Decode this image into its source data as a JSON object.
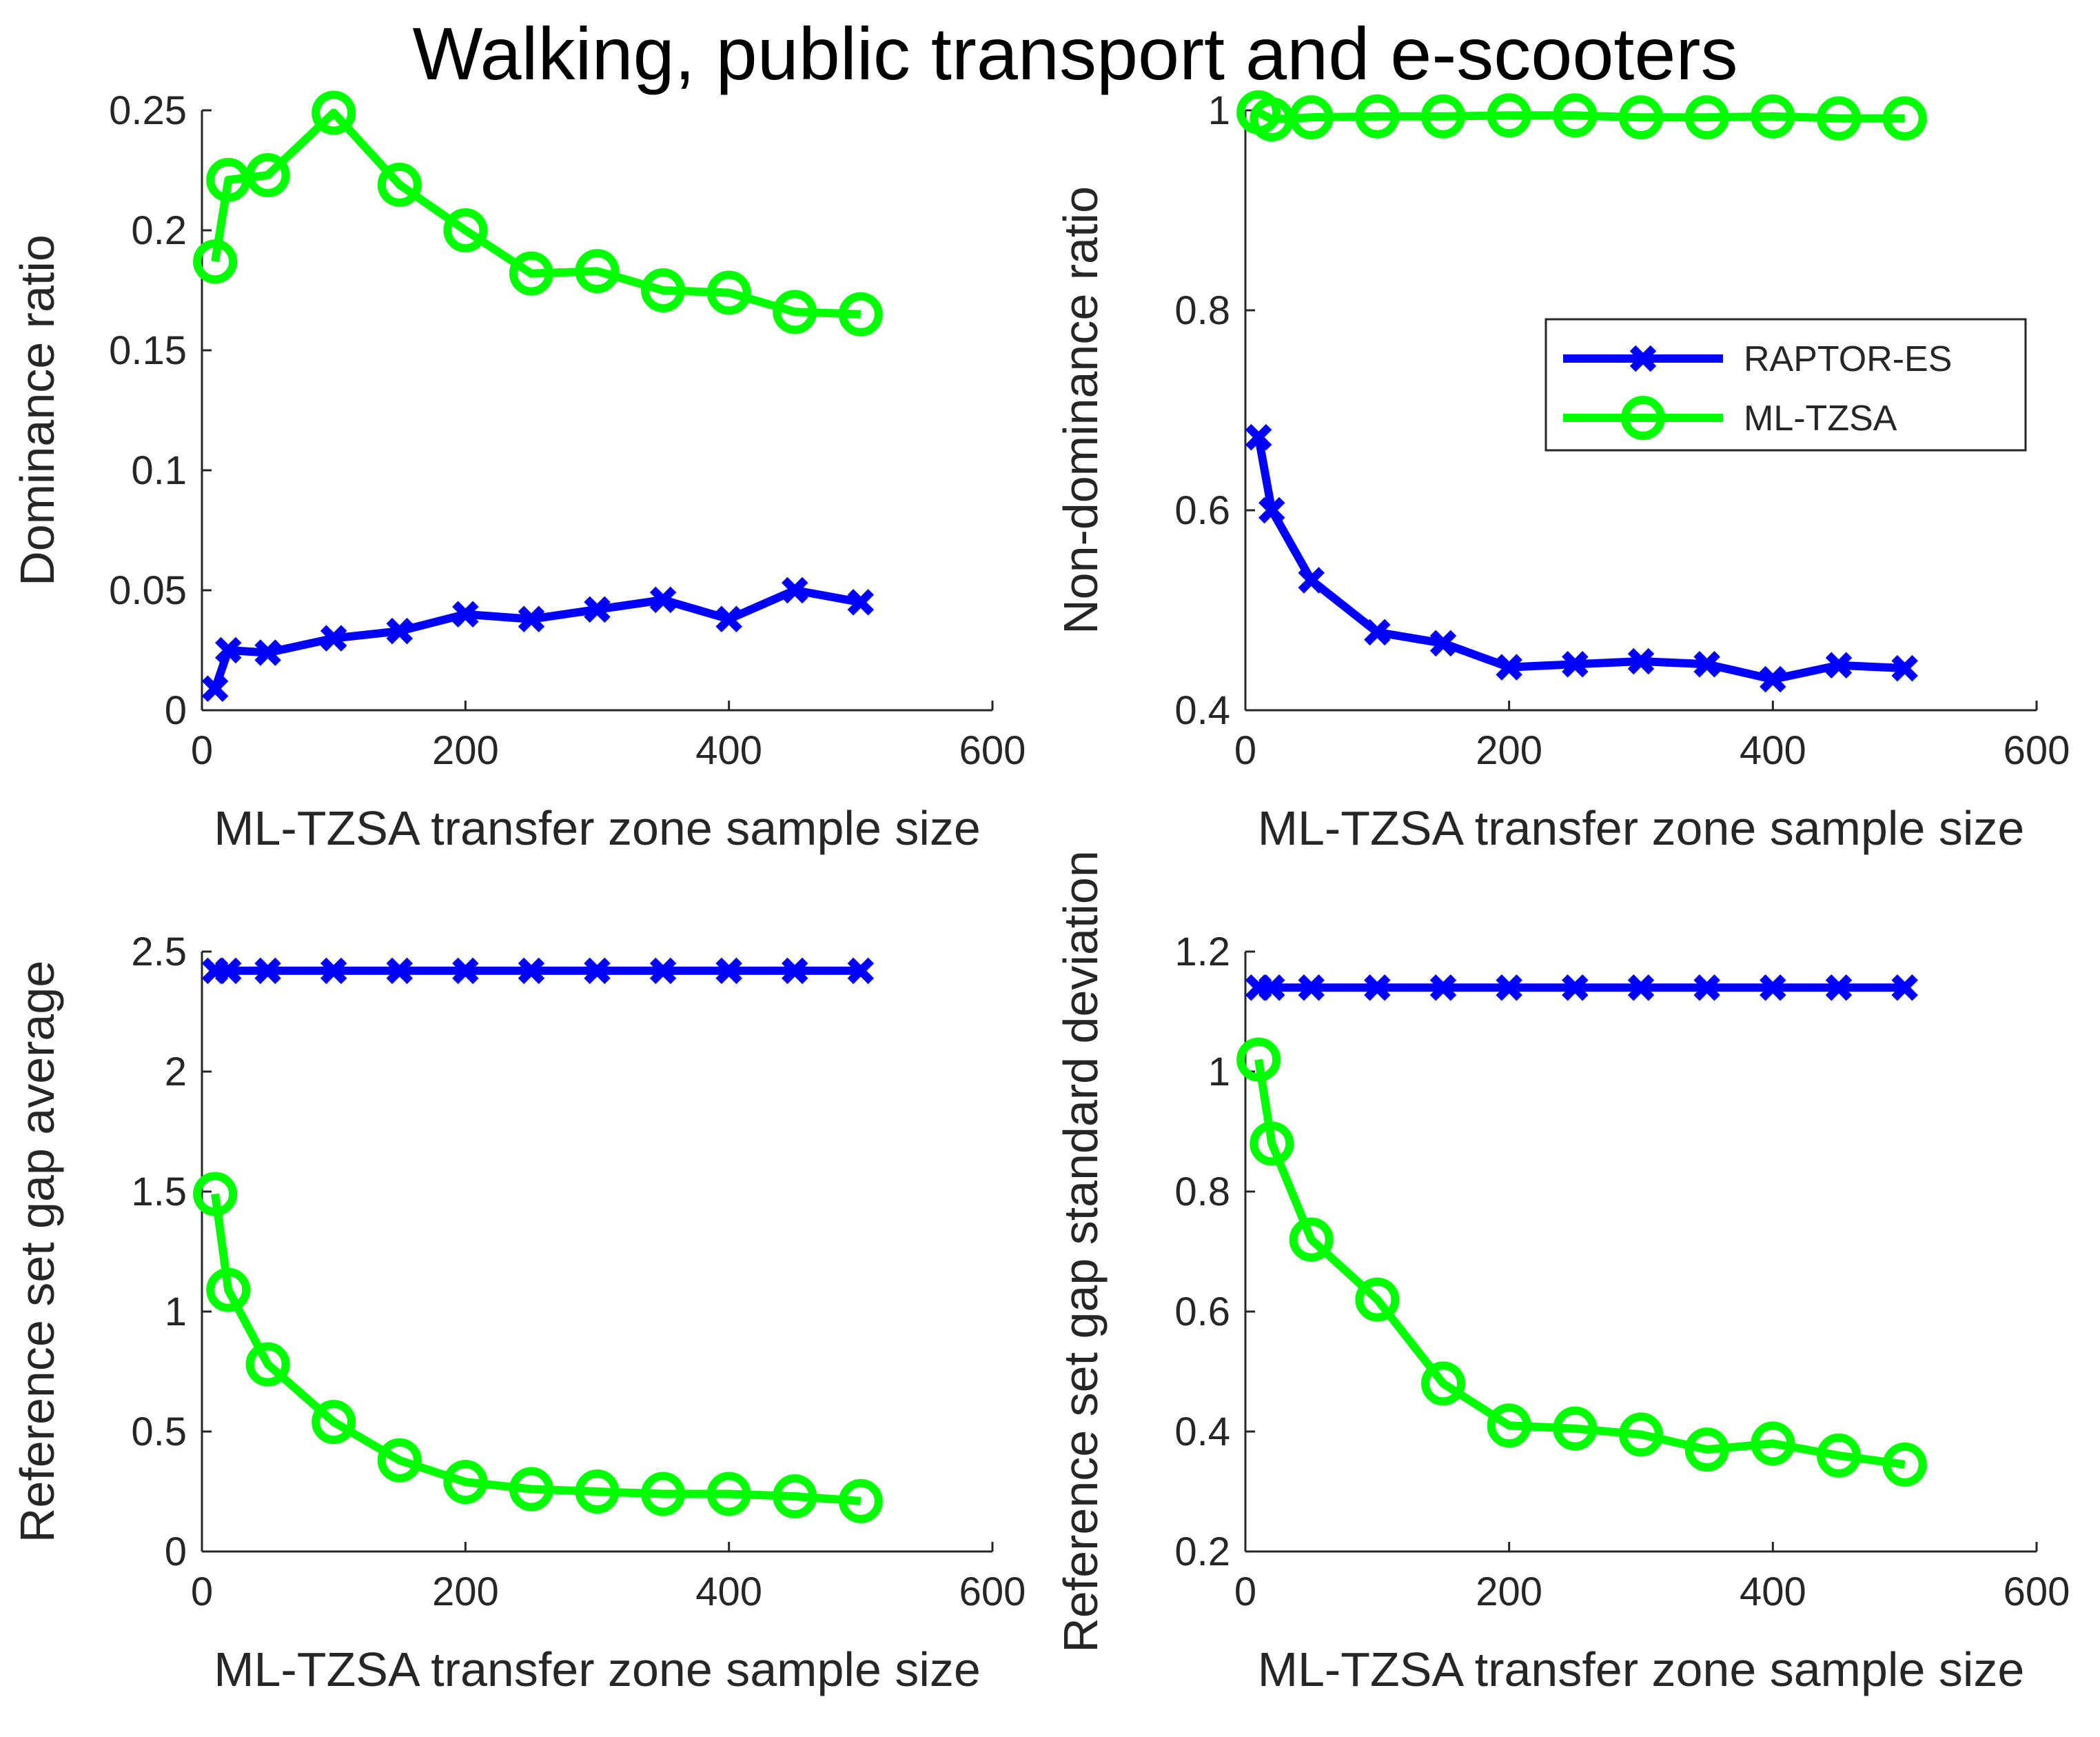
{
  "figure_title": "Walking, public transport and e-scooters",
  "colors": {
    "raptor": "#0000ff",
    "mltzsa": "#00ff00",
    "axis": "#262626"
  },
  "legend": {
    "placement": "top-right of top-right panel",
    "entries": [
      "RAPTOR-ES",
      "ML-TZSA"
    ]
  },
  "chart_data": [
    {
      "type": "line",
      "xlabel": "ML-TZSA transfer zone sample size",
      "ylabel": "Dominance ratio",
      "xlim": [
        0,
        600
      ],
      "ylim": [
        0,
        0.25
      ],
      "xticks": [
        0,
        200,
        400,
        600
      ],
      "xtick_labels": [
        "0",
        "200",
        "400",
        "600"
      ],
      "yticks": [
        0,
        0.05,
        0.1,
        0.15,
        0.2,
        0.25
      ],
      "ytick_labels": [
        "0",
        "0.05",
        "0.1",
        "0.15",
        "0.2",
        "0.25"
      ],
      "x": [
        10,
        20,
        50,
        100,
        150,
        200,
        250,
        300,
        350,
        400,
        450,
        500
      ],
      "series": [
        {
          "name": "RAPTOR-ES",
          "marker": "x",
          "values": [
            0.009,
            0.025,
            0.024,
            0.03,
            0.033,
            0.04,
            0.038,
            0.042,
            0.046,
            0.038,
            0.05,
            0.045
          ]
        },
        {
          "name": "ML-TZSA",
          "marker": "o",
          "values": [
            0.187,
            0.221,
            0.223,
            0.249,
            0.219,
            0.2,
            0.182,
            0.183,
            0.175,
            0.174,
            0.166,
            0.165
          ]
        }
      ]
    },
    {
      "type": "line",
      "xlabel": "ML-TZSA transfer zone sample size",
      "ylabel": "Non-dominance ratio",
      "xlim": [
        0,
        600
      ],
      "ylim": [
        0.4,
        1.0
      ],
      "xticks": [
        0,
        200,
        400,
        600
      ],
      "xtick_labels": [
        "0",
        "200",
        "400",
        "600"
      ],
      "yticks": [
        0.4,
        0.6,
        0.8,
        1.0
      ],
      "ytick_labels": [
        "0.4",
        "0.6",
        "0.8",
        "1"
      ],
      "x": [
        10,
        20,
        50,
        100,
        150,
        200,
        250,
        300,
        350,
        400,
        450,
        500
      ],
      "series": [
        {
          "name": "RAPTOR-ES",
          "marker": "x",
          "values": [
            0.673,
            0.6,
            0.53,
            0.478,
            0.467,
            0.443,
            0.446,
            0.449,
            0.446,
            0.431,
            0.445,
            0.442
          ]
        },
        {
          "name": "ML-TZSA",
          "marker": "o",
          "values": [
            0.998,
            0.991,
            0.993,
            0.994,
            0.994,
            0.995,
            0.995,
            0.993,
            0.993,
            0.994,
            0.992,
            0.992
          ]
        }
      ]
    },
    {
      "type": "line",
      "xlabel": "ML-TZSA transfer zone sample size",
      "ylabel": "Reference set gap average",
      "xlim": [
        0,
        600
      ],
      "ylim": [
        0,
        2.5
      ],
      "xticks": [
        0,
        200,
        400,
        600
      ],
      "xtick_labels": [
        "0",
        "200",
        "400",
        "600"
      ],
      "yticks": [
        0,
        0.5,
        1,
        1.5,
        2,
        2.5
      ],
      "ytick_labels": [
        "0",
        "0.5",
        "1",
        "1.5",
        "2",
        "2.5"
      ],
      "x": [
        10,
        20,
        50,
        100,
        150,
        200,
        250,
        300,
        350,
        400,
        450,
        500
      ],
      "series": [
        {
          "name": "RAPTOR-ES",
          "marker": "x",
          "values": [
            2.42,
            2.42,
            2.42,
            2.42,
            2.42,
            2.42,
            2.42,
            2.42,
            2.42,
            2.42,
            2.42,
            2.42
          ]
        },
        {
          "name": "ML-TZSA",
          "marker": "o",
          "values": [
            1.49,
            1.09,
            0.78,
            0.54,
            0.38,
            0.29,
            0.26,
            0.25,
            0.24,
            0.24,
            0.23,
            0.21
          ]
        }
      ]
    },
    {
      "type": "line",
      "xlabel": "ML-TZSA transfer zone sample size",
      "ylabel": "Reference set gap standard deviation",
      "xlim": [
        0,
        600
      ],
      "ylim": [
        0.2,
        1.2
      ],
      "xticks": [
        0,
        200,
        400,
        600
      ],
      "xtick_labels": [
        "0",
        "200",
        "400",
        "600"
      ],
      "yticks": [
        0.2,
        0.4,
        0.6,
        0.8,
        1.0,
        1.2
      ],
      "ytick_labels": [
        "0.2",
        "0.4",
        "0.6",
        "0.8",
        "1",
        "1.2"
      ],
      "x": [
        10,
        20,
        50,
        100,
        150,
        200,
        250,
        300,
        350,
        400,
        450,
        500
      ],
      "series": [
        {
          "name": "RAPTOR-ES",
          "marker": "x",
          "values": [
            1.14,
            1.14,
            1.14,
            1.14,
            1.14,
            1.14,
            1.14,
            1.14,
            1.14,
            1.14,
            1.14,
            1.14
          ]
        },
        {
          "name": "ML-TZSA",
          "marker": "o",
          "values": [
            1.02,
            0.88,
            0.72,
            0.62,
            0.48,
            0.41,
            0.405,
            0.395,
            0.37,
            0.38,
            0.36,
            0.345
          ]
        }
      ]
    }
  ]
}
